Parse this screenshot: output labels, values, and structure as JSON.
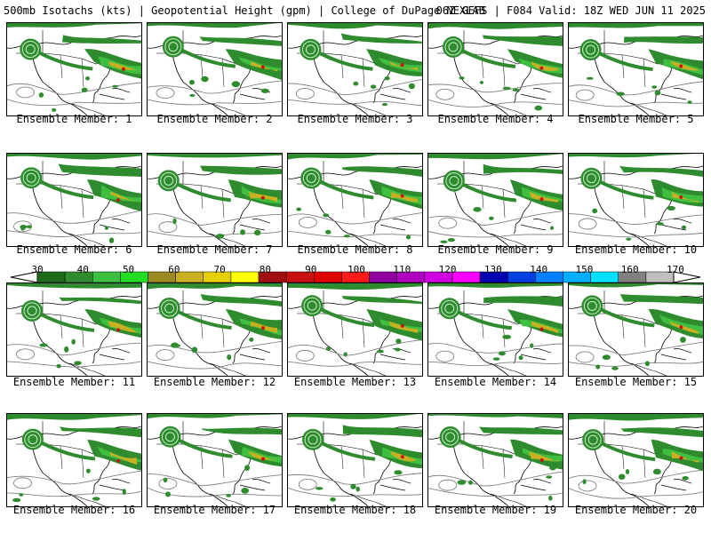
{
  "header": {
    "title_left": "500mb Isotachs (kts) | Geopotential Height (gpm) | College of DuPage NEXLAB",
    "title_right": "06Z GEFS | F084 Valid: 18Z WED JUN 11 2025"
  },
  "panels": [
    {
      "label": "Ensemble Member: 1"
    },
    {
      "label": "Ensemble Member: 2"
    },
    {
      "label": "Ensemble Member: 3"
    },
    {
      "label": "Ensemble Member: 4"
    },
    {
      "label": "Ensemble Member: 5"
    },
    {
      "label": "Ensemble Member: 6"
    },
    {
      "label": "Ensemble Member: 7"
    },
    {
      "label": "Ensemble Member: 8"
    },
    {
      "label": "Ensemble Member: 9"
    },
    {
      "label": "Ensemble Member: 10"
    },
    {
      "label": "Ensemble Member: 11"
    },
    {
      "label": "Ensemble Member: 12"
    },
    {
      "label": "Ensemble Member: 13"
    },
    {
      "label": "Ensemble Member: 14"
    },
    {
      "label": "Ensemble Member: 15"
    },
    {
      "label": "Ensemble Member: 16"
    },
    {
      "label": "Ensemble Member: 17"
    },
    {
      "label": "Ensemble Member: 18"
    },
    {
      "label": "Ensemble Member: 19"
    },
    {
      "label": "Ensemble Member: 20"
    }
  ],
  "colorbar": {
    "labels": [
      "30",
      "40",
      "50",
      "60",
      "70",
      "80",
      "90",
      "100",
      "110",
      "120",
      "130",
      "140",
      "150",
      "160",
      "170"
    ],
    "colors": [
      "#1b6b1b",
      "#2e8b2e",
      "#3fbf3f",
      "#22dd22",
      "#9a8a20",
      "#c8b020",
      "#e6d000",
      "#ffff00",
      "#a01010",
      "#c81010",
      "#e00000",
      "#ff1a1a",
      "#9000a0",
      "#b000c0",
      "#d000e0",
      "#ff00ff",
      "#0000b0",
      "#0040e0",
      "#0080ff",
      "#00b0ff",
      "#00e0ff",
      "#808080",
      "#bfbfbf"
    ]
  }
}
